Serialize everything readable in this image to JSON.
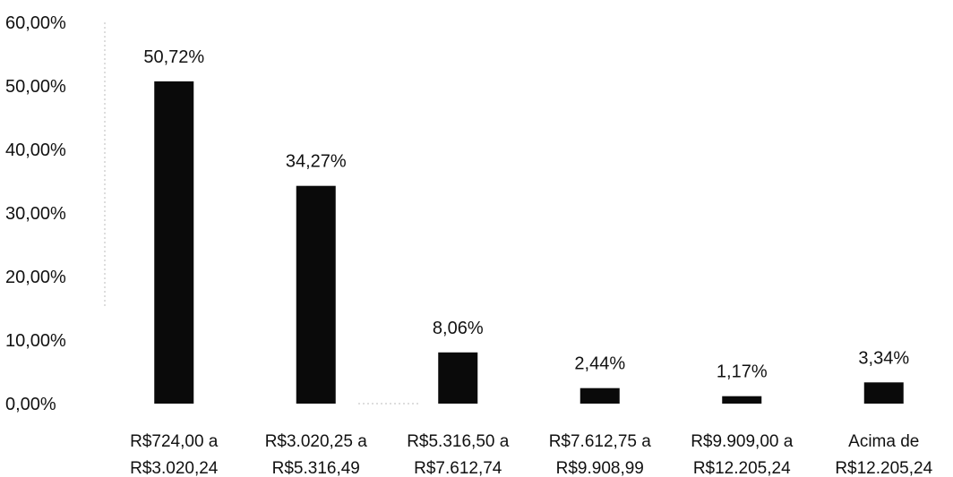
{
  "chart_data": {
    "type": "bar",
    "categories": [
      [
        "R$724,00 a",
        "R$3.020,24"
      ],
      [
        "R$3.020,25 a",
        "R$5.316,49"
      ],
      [
        "R$5.316,50 a",
        "R$7.612,74"
      ],
      [
        "R$7.612,75 a",
        "R$9.908,99"
      ],
      [
        "R$9.909,00 a",
        "R$12.205,24"
      ],
      [
        "Acima de",
        "R$12.205,24"
      ]
    ],
    "values": [
      50.72,
      34.27,
      8.06,
      2.44,
      1.17,
      3.34
    ],
    "data_labels": [
      "50,72%",
      "34,27%",
      "8,06%",
      "2,44%",
      "1,17%",
      "3,34%"
    ],
    "y_ticks": [
      "0,00%",
      "10,00%",
      "20,00%",
      "30,00%",
      "40,00%",
      "50,00%",
      "60,00%"
    ],
    "ylim": [
      0,
      60
    ],
    "grid": false,
    "legend": "none",
    "bar_color": "#0a0a0a"
  }
}
